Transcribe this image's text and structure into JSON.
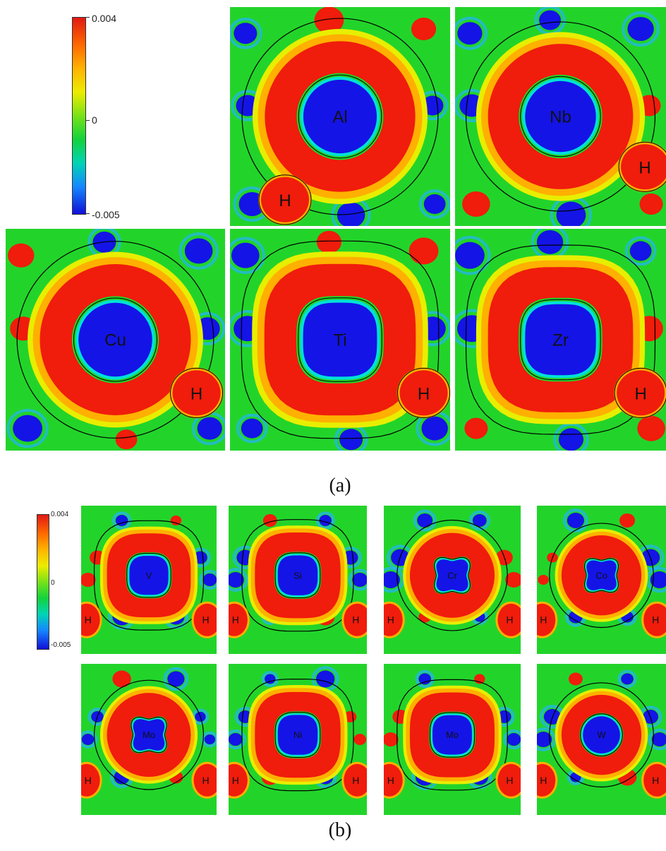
{
  "figure_a": {
    "caption": "(a)",
    "colorbar": {
      "max_label": "0.004",
      "mid_label": "0",
      "min_label": "-0.005"
    },
    "panels": [
      {
        "element": "Al",
        "hydrogen_label": "H",
        "shape": "round"
      },
      {
        "element": "Nb",
        "hydrogen_label": "H",
        "shape": "round"
      },
      {
        "element": "Cu",
        "hydrogen_label": "H",
        "shape": "round"
      },
      {
        "element": "Ti",
        "hydrogen_label": "H",
        "shape": "square"
      },
      {
        "element": "Zr",
        "hydrogen_label": "H",
        "shape": "square"
      }
    ]
  },
  "figure_b": {
    "caption": "(b)",
    "colorbar": {
      "max_label": "0.004",
      "mid_label": "0",
      "min_label": "-0.005"
    },
    "panels": [
      {
        "element": "V",
        "hydrogen_label": "H",
        "shape": "square"
      },
      {
        "element": "Si",
        "hydrogen_label": "H",
        "shape": "square"
      },
      {
        "element": "Cr",
        "hydrogen_label": "H",
        "shape": "cross"
      },
      {
        "element": "Co",
        "hydrogen_label": "H",
        "shape": "cross"
      },
      {
        "element": "Mo",
        "hydrogen_label": "H",
        "shape": "cross"
      },
      {
        "element": "Ni",
        "hydrogen_label": "H",
        "shape": "square"
      },
      {
        "element": "Mo",
        "hydrogen_label": "H",
        "shape": "square"
      },
      {
        "element": "W",
        "hydrogen_label": "H",
        "shape": "round"
      }
    ]
  },
  "colors": {
    "background_green": "#22d42a",
    "positive_red": "#f01c0c",
    "ring_orange": "#ffb000",
    "ring_yellow": "#e8ee00",
    "negative_blue": "#1414e6",
    "light_blue": "#22b4ff",
    "cyan": "#00e0d8",
    "contour": "#000000"
  }
}
